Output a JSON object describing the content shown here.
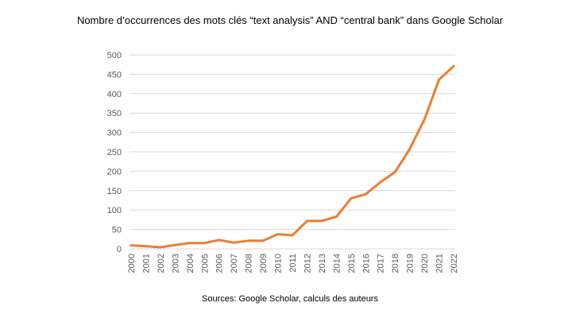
{
  "chart_data": {
    "type": "line",
    "title": "Nombre d’occurrences des mots clés “text analysis” AND “central bank” dans Google Scholar",
    "source": "Sources: Google Scholar, calculs des auteurs",
    "xlabel": "",
    "ylabel": "",
    "ylim": [
      0,
      500
    ],
    "yticks": [
      0,
      50,
      100,
      150,
      200,
      250,
      300,
      350,
      400,
      450,
      500
    ],
    "grid": true,
    "legend": "none",
    "color": "#ED7D31",
    "categories": [
      "2000",
      "2001",
      "2002",
      "2003",
      "2004",
      "2005",
      "2006",
      "2007",
      "2008",
      "2009",
      "2010",
      "2011",
      "2012",
      "2013",
      "2014",
      "2015",
      "2016",
      "2017",
      "2018",
      "2019",
      "2020",
      "2021",
      "2022"
    ],
    "series": [
      {
        "values": [
          9,
          7,
          4,
          10,
          15,
          15,
          23,
          16,
          21,
          21,
          38,
          35,
          72,
          72,
          83,
          130,
          141,
          172,
          198,
          257,
          333,
          436,
          471
        ]
      }
    ]
  }
}
